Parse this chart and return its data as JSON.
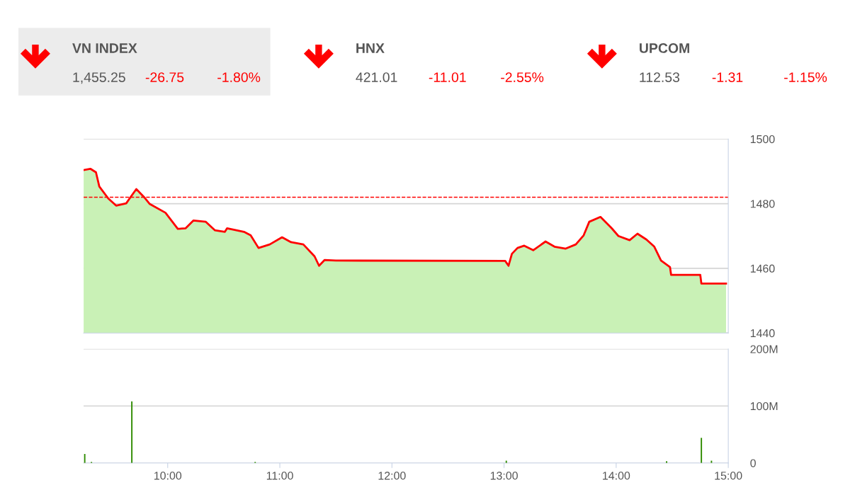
{
  "chart_data": [
    {
      "type": "other",
      "annotations": [
        "VN INDEX",
        "1,455.25",
        "-26.75",
        "-1.80%",
        "HNX",
        "421.01",
        "-11.01",
        "-2.55%",
        "UPCOM",
        "112.53",
        "-1.31",
        "-1.15%"
      ]
    },
    {
      "type": "area",
      "xlim": [
        9.25,
        15
      ],
      "ylim": [
        1440,
        1500
      ],
      "yticks": [
        1440,
        1460,
        1480,
        1500
      ],
      "tick_labels": "y",
      "grid": "y",
      "ref_lines": [
        {
          "axis": "y",
          "value": 1482,
          "color": "#ff0000",
          "line_style": "dashed"
        }
      ],
      "series": [
        {
          "type": "area",
          "color": "#c9f1b6",
          "x": [
            9.25,
            9.31,
            9.36,
            9.39,
            9.47,
            9.54,
            9.63,
            9.66,
            9.72,
            9.79,
            9.84,
            9.98,
            10.09,
            10.16,
            10.23,
            10.34,
            10.42,
            10.51,
            10.53,
            10.68,
            10.74,
            10.81,
            10.91,
            11.02,
            11.1,
            11.21,
            11.31,
            11.35,
            11.4,
            11.5,
            13.01,
            13.04,
            13.07,
            13.12,
            13.18,
            13.26,
            13.37,
            13.45,
            13.55,
            13.64,
            13.71,
            13.76,
            13.86,
            13.96,
            14.02,
            14.12,
            14.19,
            14.27,
            14.34,
            14.4,
            14.48,
            14.49,
            14.75,
            14.76,
            14.98
          ],
          "values": [
            1490.4,
            1490.8,
            1489.7,
            1485.3,
            1481.6,
            1479.4,
            1480.1,
            1481.6,
            1484.5,
            1482,
            1479.9,
            1477.2,
            1472.2,
            1472.4,
            1474.8,
            1474.4,
            1471.8,
            1471.3,
            1472.4,
            1471.3,
            1470.2,
            1466.3,
            1467.4,
            1469.6,
            1468.1,
            1467.4,
            1463.7,
            1460.8,
            1462.6,
            1462.4,
            1462.3,
            1460.8,
            1464.5,
            1466.3,
            1467,
            1465.6,
            1468.3,
            1466.7,
            1466.1,
            1467.4,
            1470.2,
            1474.4,
            1475.9,
            1472.4,
            1470,
            1468.7,
            1470.7,
            1468.9,
            1466.7,
            1462.4,
            1460.4,
            1458,
            1458,
            1455.3,
            1455.3
          ]
        },
        {
          "type": "line",
          "color": "#ff0000",
          "x": [
            9.25,
            9.31,
            9.36,
            9.39,
            9.47,
            9.54,
            9.63,
            9.66,
            9.72,
            9.79,
            9.84,
            9.98,
            10.09,
            10.16,
            10.23,
            10.34,
            10.42,
            10.51,
            10.53,
            10.68,
            10.74,
            10.81,
            10.91,
            11.02,
            11.1,
            11.21,
            11.31,
            11.35,
            11.4,
            11.5,
            13.01,
            13.04,
            13.07,
            13.12,
            13.18,
            13.26,
            13.37,
            13.45,
            13.55,
            13.64,
            13.71,
            13.76,
            13.86,
            13.96,
            14.02,
            14.12,
            14.19,
            14.27,
            14.34,
            14.4,
            14.48,
            14.49,
            14.75,
            14.76,
            14.98
          ],
          "values": [
            1490.4,
            1490.8,
            1489.7,
            1485.3,
            1481.6,
            1479.4,
            1480.1,
            1481.6,
            1484.5,
            1482,
            1479.9,
            1477.2,
            1472.2,
            1472.4,
            1474.8,
            1474.4,
            1471.8,
            1471.3,
            1472.4,
            1471.3,
            1470.2,
            1466.3,
            1467.4,
            1469.6,
            1468.1,
            1467.4,
            1463.7,
            1460.8,
            1462.6,
            1462.4,
            1462.3,
            1460.8,
            1464.5,
            1466.3,
            1467,
            1465.6,
            1468.3,
            1466.7,
            1466.1,
            1467.4,
            1470.2,
            1474.4,
            1475.9,
            1472.4,
            1470,
            1468.7,
            1470.7,
            1468.9,
            1466.7,
            1462.4,
            1460.4,
            1458,
            1458,
            1455.3,
            1455.3
          ]
        }
      ]
    },
    {
      "type": "bar",
      "xlim": [
        9.25,
        15
      ],
      "ylim": [
        0,
        200
      ],
      "yticks": [
        0,
        {
          "value": 100,
          "label": "100M"
        },
        {
          "value": 200,
          "label": "200M"
        }
      ],
      "xticks": [
        {
          "value": 10,
          "label": "10:00"
        },
        {
          "value": 11,
          "label": "11:00"
        },
        {
          "value": 12,
          "label": "12:00"
        },
        {
          "value": 13,
          "label": "13:00"
        },
        {
          "value": 14,
          "label": "14:00"
        },
        {
          "value": 15,
          "label": "15:00"
        }
      ],
      "grid": "y",
      "series": [
        {
          "color": "#2e8b00",
          "x": [
            9.26,
            9.32,
            9.68,
            10.78,
            13.02,
            14.45,
            14.76,
            14.85
          ],
          "values": [
            16,
            2,
            108,
            2,
            4,
            3,
            44,
            4
          ]
        }
      ]
    }
  ]
}
